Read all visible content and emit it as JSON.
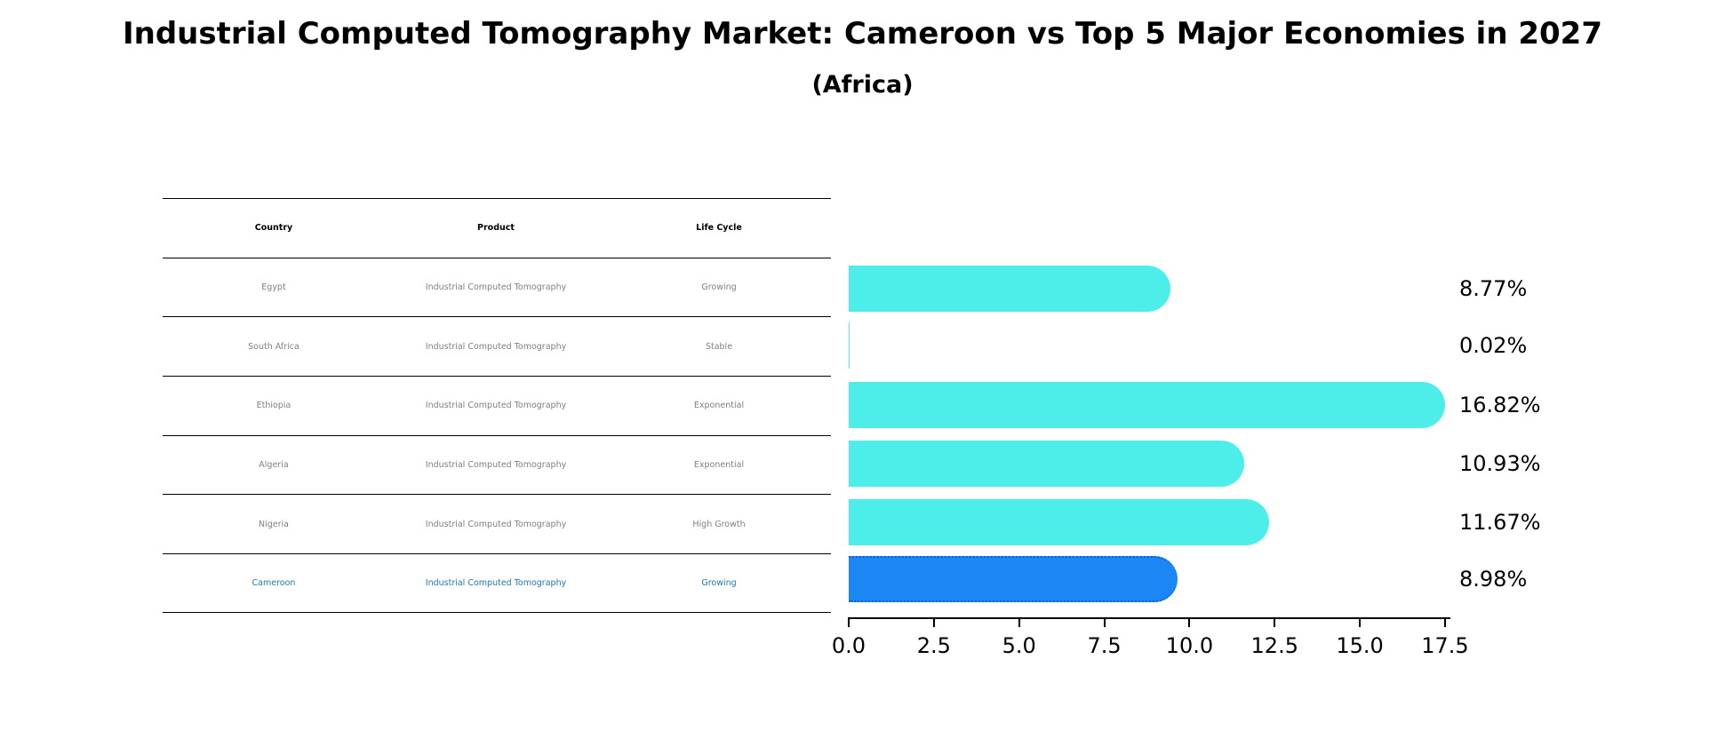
{
  "title": "Industrial Computed Tomography Market: Cameroon vs Top 5 Major Economies in 2027",
  "subtitle": "(Africa)",
  "table": {
    "headers": [
      "Country",
      "Product",
      "Life Cycle"
    ],
    "rows": [
      [
        "Egypt",
        "Industrial Computed Tomography",
        "Growing"
      ],
      [
        "South Africa",
        "Industrial Computed Tomography",
        "Stable"
      ],
      [
        "Ethiopia",
        "Industrial Computed Tomography",
        "Exponential"
      ],
      [
        "Algeria",
        "Industrial Computed Tomography",
        "Exponential"
      ],
      [
        "Nigeria",
        "Industrial Computed Tomography",
        "High Growth"
      ],
      [
        "Cameroon",
        "Industrial Computed Tomography",
        "Growing"
      ]
    ],
    "highlight_row": 5
  },
  "colors": {
    "bar": "#4deeea",
    "highlight_bar": "#1a87f5",
    "highlight_text": "#1f77b4",
    "muted_text": "#7f7f7f"
  },
  "value_labels": [
    "8.77%",
    "0.02%",
    "16.82%",
    "10.93%",
    "11.67%",
    "8.98%"
  ],
  "x_ticks": [
    "0.0",
    "2.5",
    "5.0",
    "7.5",
    "10.0",
    "12.5",
    "15.0",
    "17.5"
  ],
  "chart_data": {
    "type": "bar",
    "orientation": "horizontal",
    "title": "Industrial Computed Tomography Market: Cameroon vs Top 5 Major Economies in 2027",
    "subtitle": "(Africa)",
    "categories": [
      "Egypt",
      "South Africa",
      "Ethiopia",
      "Algeria",
      "Nigeria",
      "Cameroon"
    ],
    "values": [
      8.77,
      0.02,
      16.82,
      10.93,
      11.67,
      8.98
    ],
    "value_labels": [
      "8.77%",
      "0.02%",
      "16.82%",
      "10.93%",
      "11.67%",
      "8.98%"
    ],
    "highlight": "Cameroon",
    "xlabel": "",
    "ylabel": "",
    "xlim": [
      0,
      17.66
    ],
    "x_ticks": [
      0.0,
      2.5,
      5.0,
      7.5,
      10.0,
      12.5,
      15.0,
      17.5
    ],
    "grid": false,
    "legend": null
  }
}
